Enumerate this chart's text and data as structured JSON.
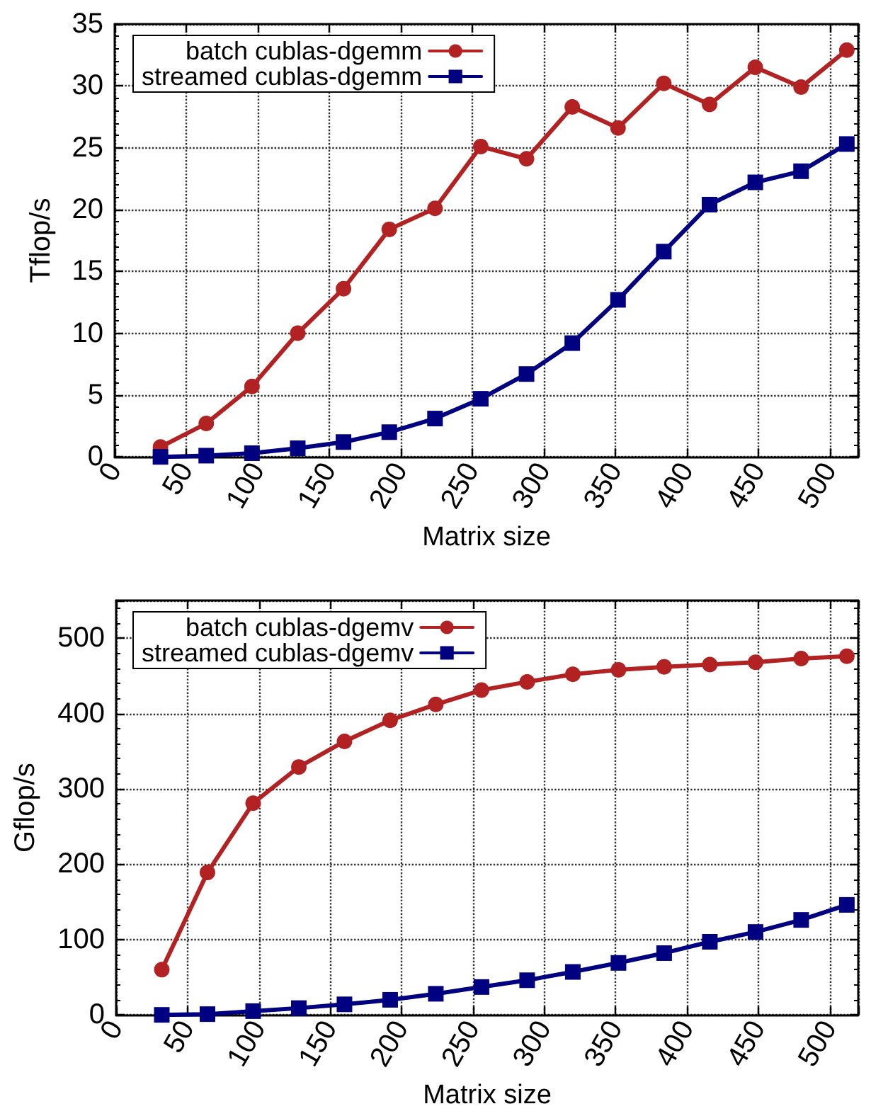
{
  "chart_data": [
    {
      "type": "line",
      "xlabel": "Matrix size",
      "ylabel": "Tflop/s",
      "x": [
        32,
        64,
        96,
        128,
        160,
        192,
        224,
        256,
        288,
        320,
        352,
        384,
        416,
        448,
        480,
        512
      ],
      "xlim": [
        0,
        520
      ],
      "xticks": [
        0,
        50,
        100,
        150,
        200,
        250,
        300,
        350,
        400,
        450,
        500
      ],
      "ylim": [
        0,
        35
      ],
      "yticks": [
        0,
        5,
        10,
        15,
        20,
        25,
        30,
        35
      ],
      "grid": true,
      "legend": "top left",
      "line_style": "solid",
      "series": [
        {
          "name": "batch cublas-dgemm",
          "color": "#b22222",
          "marker": "circle",
          "values": [
            0.8,
            2.7,
            5.7,
            10.0,
            13.6,
            18.4,
            20.1,
            25.1,
            24.1,
            28.3,
            26.6,
            30.2,
            28.5,
            31.5,
            29.9,
            32.9
          ]
        },
        {
          "name": "streamed cublas-dgemm",
          "color": "#000080",
          "marker": "square",
          "values": [
            0.0,
            0.1,
            0.3,
            0.7,
            1.2,
            2.0,
            3.1,
            4.7,
            6.7,
            9.2,
            12.7,
            16.6,
            20.4,
            22.2,
            23.1,
            25.3
          ]
        }
      ]
    },
    {
      "type": "line",
      "xlabel": "Matrix size",
      "ylabel": "Gflop/s",
      "x": [
        32,
        64,
        96,
        128,
        160,
        192,
        224,
        256,
        288,
        320,
        352,
        384,
        416,
        448,
        480,
        512
      ],
      "xlim": [
        0,
        520
      ],
      "xticks": [
        0,
        50,
        100,
        150,
        200,
        250,
        300,
        350,
        400,
        450,
        500
      ],
      "ylim": [
        0,
        550
      ],
      "yticks": [
        0,
        100,
        200,
        300,
        400,
        500
      ],
      "grid": true,
      "legend": "top left",
      "line_style": "solid",
      "series": [
        {
          "name": "batch cublas-dgemv",
          "color": "#b22222",
          "marker": "circle",
          "values": [
            60,
            189,
            281,
            329,
            363,
            391,
            412,
            431,
            442,
            452,
            458,
            462,
            465,
            468,
            473,
            476
          ]
        },
        {
          "name": "streamed cublas-dgemv",
          "color": "#000080",
          "marker": "square",
          "values": [
            0,
            1,
            5,
            9,
            14,
            20,
            28,
            37,
            46,
            57,
            69,
            82,
            97,
            110,
            126,
            146
          ]
        }
      ]
    }
  ]
}
